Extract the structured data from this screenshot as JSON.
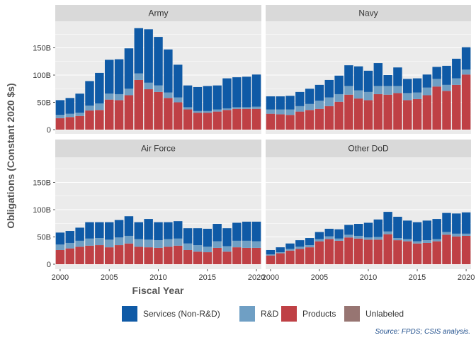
{
  "chart_data": {
    "type": "bar",
    "stacked": true,
    "ylabel": "Obligations (Constant 2020 $s)",
    "xlabel": "Fiscal Year",
    "caption": "Source: FPDS; CSIS analysis.",
    "ylim": [
      0,
      190
    ],
    "y_ticks": [
      0,
      50,
      100,
      150
    ],
    "y_tick_labels": [
      "0",
      "50B",
      "100B",
      "150B"
    ],
    "x_ticks": [
      2000,
      2005,
      2010,
      2015,
      2020
    ],
    "x_tick_labels": [
      "2000",
      "2005",
      "2010",
      "2015",
      "2020"
    ],
    "years": [
      2000,
      2001,
      2002,
      2003,
      2004,
      2005,
      2006,
      2007,
      2008,
      2009,
      2010,
      2011,
      2012,
      2013,
      2014,
      2015,
      2016,
      2017,
      2018,
      2019,
      2020
    ],
    "legend": [
      {
        "key": "services",
        "label": "Services (Non-R&D)",
        "color": "#0f5aa6"
      },
      {
        "key": "rnd",
        "label": "R&D",
        "color": "#6f9fc4"
      },
      {
        "key": "products",
        "label": "Products",
        "color": "#bf4045"
      },
      {
        "key": "unlabeled",
        "label": "Unlabeled",
        "color": "#977572"
      }
    ],
    "panels": [
      {
        "title": "Army",
        "products": [
          21,
          23,
          25,
          35,
          36,
          55,
          54,
          63,
          91,
          74,
          69,
          58,
          50,
          37,
          31,
          31,
          33,
          36,
          38,
          38,
          38
        ],
        "rnd": [
          6,
          6,
          6,
          9,
          12,
          11,
          11,
          12,
          12,
          12,
          12,
          10,
          9,
          4,
          3,
          3,
          4,
          3,
          3,
          3,
          4
        ],
        "services": [
          27,
          29,
          35,
          45,
          56,
          62,
          64,
          74,
          83,
          98,
          89,
          79,
          60,
          40,
          44,
          46,
          44,
          55,
          55,
          56,
          59
        ],
        "unlabeled": [
          0,
          0,
          0,
          0,
          0,
          0,
          0,
          0,
          0,
          0,
          0,
          0,
          0,
          0,
          0,
          0,
          0,
          0,
          0,
          0,
          0
        ]
      },
      {
        "title": "Navy",
        "products": [
          29,
          28,
          27,
          33,
          36,
          38,
          43,
          51,
          64,
          57,
          54,
          65,
          64,
          67,
          54,
          56,
          63,
          79,
          71,
          82,
          101
        ],
        "rnd": [
          8,
          9,
          10,
          10,
          11,
          15,
          16,
          14,
          16,
          15,
          15,
          15,
          16,
          13,
          13,
          12,
          14,
          14,
          11,
          12,
          9
        ],
        "services": [
          24,
          24,
          25,
          26,
          28,
          29,
          32,
          34,
          38,
          44,
          39,
          42,
          20,
          34,
          26,
          26,
          24,
          22,
          35,
          36,
          41
        ],
        "unlabeled": [
          0,
          0,
          0,
          0,
          0,
          0,
          0,
          0,
          0,
          0,
          0,
          0,
          0,
          0,
          0,
          0,
          0,
          0,
          0,
          0,
          0
        ]
      },
      {
        "title": "Air Force",
        "products": [
          26,
          29,
          32,
          34,
          35,
          31,
          35,
          38,
          32,
          31,
          30,
          32,
          34,
          26,
          23,
          22,
          30,
          23,
          31,
          30,
          30
        ],
        "rnd": [
          10,
          10,
          11,
          13,
          13,
          14,
          14,
          14,
          14,
          14,
          14,
          14,
          13,
          12,
          12,
          10,
          12,
          10,
          12,
          13,
          12
        ],
        "services": [
          22,
          22,
          24,
          30,
          29,
          32,
          32,
          36,
          31,
          38,
          33,
          31,
          32,
          28,
          31,
          33,
          32,
          33,
          33,
          35,
          36
        ],
        "unlabeled": [
          0,
          0,
          0,
          0,
          0,
          0,
          0,
          0,
          0,
          0,
          0,
          0,
          0,
          0,
          0,
          0,
          0,
          0,
          0,
          0,
          0
        ]
      },
      {
        "title": "Other DoD",
        "products": [
          16,
          20,
          25,
          28,
          31,
          42,
          46,
          43,
          49,
          47,
          45,
          45,
          55,
          44,
          42,
          38,
          39,
          42,
          54,
          51,
          52
        ],
        "rnd": [
          2,
          2,
          3,
          4,
          4,
          4,
          5,
          4,
          5,
          5,
          4,
          5,
          5,
          4,
          4,
          4,
          5,
          4,
          5,
          5,
          4
        ],
        "services": [
          8,
          9,
          10,
          12,
          13,
          13,
          14,
          17,
          18,
          22,
          27,
          32,
          36,
          39,
          34,
          35,
          36,
          37,
          35,
          37,
          39
        ],
        "unlabeled": [
          0,
          0,
          0,
          0,
          0,
          0,
          0,
          0,
          0,
          0,
          0,
          0,
          0,
          0,
          0,
          0,
          0,
          0,
          0,
          0,
          0
        ]
      }
    ]
  }
}
